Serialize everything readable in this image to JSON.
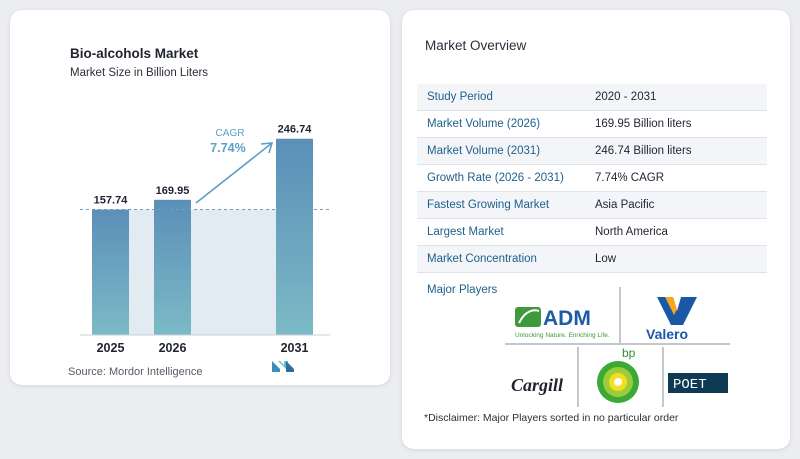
{
  "chart_data": {
    "type": "bar",
    "title": "Bio-alcohols Market",
    "subtitle": "Market Size in Billion Liters",
    "categories": [
      "2025",
      "2026",
      "2031"
    ],
    "values": [
      157.74,
      169.95,
      246.74
    ],
    "value_labels": [
      "157.74",
      "169.95",
      "246.74"
    ],
    "cagr_label": "CAGR",
    "cagr_value": "7.74%",
    "reference_line_at": 157.74,
    "bar_color": "#5e93b8",
    "accent_color": "#5b9fc8",
    "ylim": [
      0,
      260
    ]
  },
  "source": "Source:  Mordor Intelligence",
  "overview": {
    "title": "Market Overview",
    "rows": [
      {
        "label": "Study Period",
        "value": "2020 - 2031"
      },
      {
        "label": "Market Volume (2026)",
        "value": "169.95 Billion liters"
      },
      {
        "label": "Market Volume (2031)",
        "value": "246.74 Billion liters"
      },
      {
        "label": "Growth Rate (2026 - 2031)",
        "value": "7.74% CAGR"
      },
      {
        "label": "Fastest Growing Market",
        "value": "Asia Pacific"
      },
      {
        "label": "Largest Market",
        "value": "North America"
      },
      {
        "label": "Market Concentration",
        "value": "Low"
      }
    ],
    "major_players_label": "Major Players",
    "logos": {
      "adm": "ADM",
      "adm_tagline": "Unlocking Nature. Enriching Life.",
      "valero": "Valero",
      "cargill": "Cargill",
      "bp": "bp",
      "poet": "POET"
    },
    "disclaimer": "*Disclaimer: Major Players sorted in no particular order"
  }
}
